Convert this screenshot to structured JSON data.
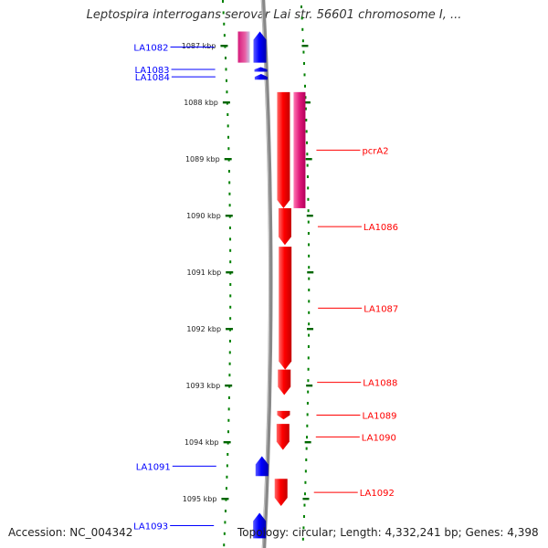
{
  "title": "Leptospira interrogans serovar Lai str. 56601 chromosome I, ...",
  "footer": {
    "accession": "Accession: NC_004342",
    "stats": "Topology: circular; Length: 4,332,241 bp; Genes: 4,398"
  },
  "colors": {
    "forward_strand": "#ff0000",
    "reverse_strand": "#0000ff",
    "pseudo_gene": "#e0197a",
    "pseudo_gene_rev": "#e0197a",
    "backbone": "#888888",
    "tick_dots": "#008000",
    "bp_ticks": "#006600"
  },
  "bp_ticks": [
    {
      "label": "1087 kbp",
      "pos_kbp": 1087
    },
    {
      "label": "1088 kbp",
      "pos_kbp": 1088
    },
    {
      "label": "1089 kbp",
      "pos_kbp": 1089
    },
    {
      "label": "1090 kbp",
      "pos_kbp": 1090
    },
    {
      "label": "1091 kbp",
      "pos_kbp": 1091
    },
    {
      "label": "1092 kbp",
      "pos_kbp": 1092
    },
    {
      "label": "1093 kbp",
      "pos_kbp": 1093
    },
    {
      "label": "1094 kbp",
      "pos_kbp": 1094
    },
    {
      "label": "1095 kbp",
      "pos_kbp": 1095
    }
  ],
  "genes": [
    {
      "name": "LA1082",
      "strand": "-",
      "start_kbp": 1086.75,
      "end_kbp": 1087.3,
      "type": "cds",
      "pseudo_pair": true
    },
    {
      "name": "LA1083",
      "strand": "-",
      "start_kbp": 1087.38,
      "end_kbp": 1087.46,
      "type": "cds"
    },
    {
      "name": "LA1084",
      "strand": "-",
      "start_kbp": 1087.5,
      "end_kbp": 1087.6,
      "type": "cds"
    },
    {
      "name": "pcrA2",
      "strand": "+",
      "start_kbp": 1087.82,
      "end_kbp": 1089.87,
      "type": "cds",
      "pseudo_pair": true
    },
    {
      "name": "LA1086",
      "strand": "+",
      "start_kbp": 1089.87,
      "end_kbp": 1090.52,
      "type": "cds"
    },
    {
      "name": "LA1087",
      "strand": "+",
      "start_kbp": 1090.55,
      "end_kbp": 1092.72,
      "type": "cds"
    },
    {
      "name": "LA1088",
      "strand": "+",
      "start_kbp": 1092.72,
      "end_kbp": 1093.17,
      "type": "cds"
    },
    {
      "name": "LA1089",
      "strand": "+",
      "start_kbp": 1093.45,
      "end_kbp": 1093.6,
      "type": "cds"
    },
    {
      "name": "LA1090",
      "strand": "+",
      "start_kbp": 1093.68,
      "end_kbp": 1094.14,
      "type": "cds"
    },
    {
      "name": "LA1091",
      "strand": "-",
      "start_kbp": 1094.25,
      "end_kbp": 1094.6,
      "type": "cds"
    },
    {
      "name": "LA1092",
      "strand": "+",
      "start_kbp": 1094.65,
      "end_kbp": 1095.13,
      "type": "cds"
    },
    {
      "name": "LA1093",
      "strand": "-",
      "start_kbp": 1095.25,
      "end_kbp": 1095.7,
      "type": "cds"
    }
  ]
}
